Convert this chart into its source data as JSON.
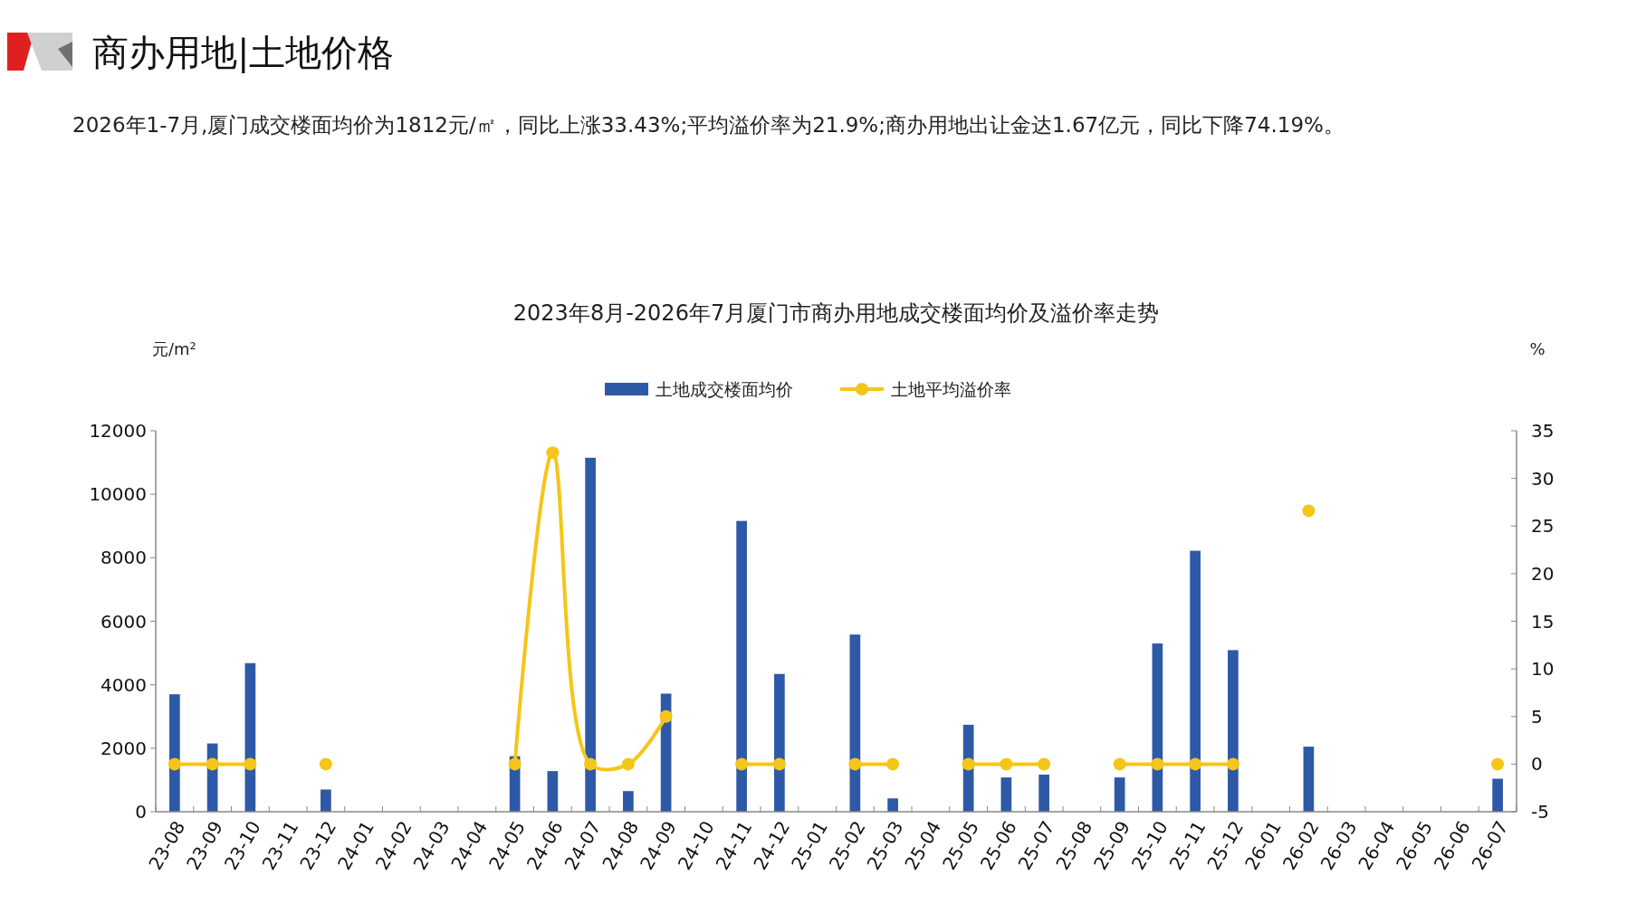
{
  "chart_data": {
    "type": "bar",
    "title": "2023年8月-2026年7月厦门市商办用地成交楼面均价及溢价率走势",
    "subtitle": "2026年1-7月,厦门成交楼面均价为1812元/㎡，同比上涨33.43%;平均溢价率为21.9%;商办用地出让金达1.67亿元，同比下降74.19%。",
    "annotations": [
      "商办用地|土地价格"
    ],
    "ylabel": "元/m²",
    "y2label": "%",
    "categories": [
      "23-08",
      "23-09",
      "23-10",
      "23-11",
      "23-12",
      "24-01",
      "24-02",
      "24-03",
      "24-04",
      "24-05",
      "24-06",
      "24-07",
      "24-08",
      "24-09",
      "24-10",
      "24-11",
      "24-12",
      "25-01",
      "25-02",
      "25-03",
      "25-04",
      "25-05",
      "25-06",
      "25-07",
      "25-08",
      "25-09",
      "25-10",
      "25-11",
      "25-12",
      "26-01",
      "26-02",
      "26-03",
      "26-04",
      "26-05",
      "26-06",
      "26-07"
    ],
    "series": [
      {
        "name": "土地成交楼面均价",
        "color": "#2e59a7",
        "values": [
          3700,
          2150,
          4680,
          null,
          700,
          null,
          null,
          null,
          null,
          1750,
          1280,
          11150,
          650,
          3720,
          null,
          9160,
          4340,
          null,
          5580,
          420,
          null,
          2740,
          1080,
          1170,
          null,
          1080,
          5300,
          8220,
          5090,
          null,
          2050,
          null,
          null,
          null,
          null,
          1040
        ]
      },
      {
        "name": "土地平均溢价率",
        "type": "line",
        "axis": "y2",
        "color": "#f5c518",
        "marker": "circle",
        "values": [
          0,
          0,
          0,
          null,
          0,
          null,
          null,
          null,
          null,
          0,
          32.7,
          0,
          0,
          5,
          null,
          0,
          0,
          null,
          0,
          0,
          null,
          0,
          0,
          0,
          null,
          0,
          0,
          0,
          0,
          null,
          26.6,
          null,
          null,
          null,
          null,
          0
        ]
      }
    ],
    "ylim": [
      0,
      12000
    ],
    "yticks": [
      0,
      2000,
      4000,
      6000,
      8000,
      10000,
      12000
    ],
    "y2lim": [
      -5,
      35
    ],
    "y2ticks": [
      -5,
      0,
      5,
      10,
      15,
      20,
      25,
      30,
      35
    ],
    "legend": "top",
    "grid": false
  }
}
